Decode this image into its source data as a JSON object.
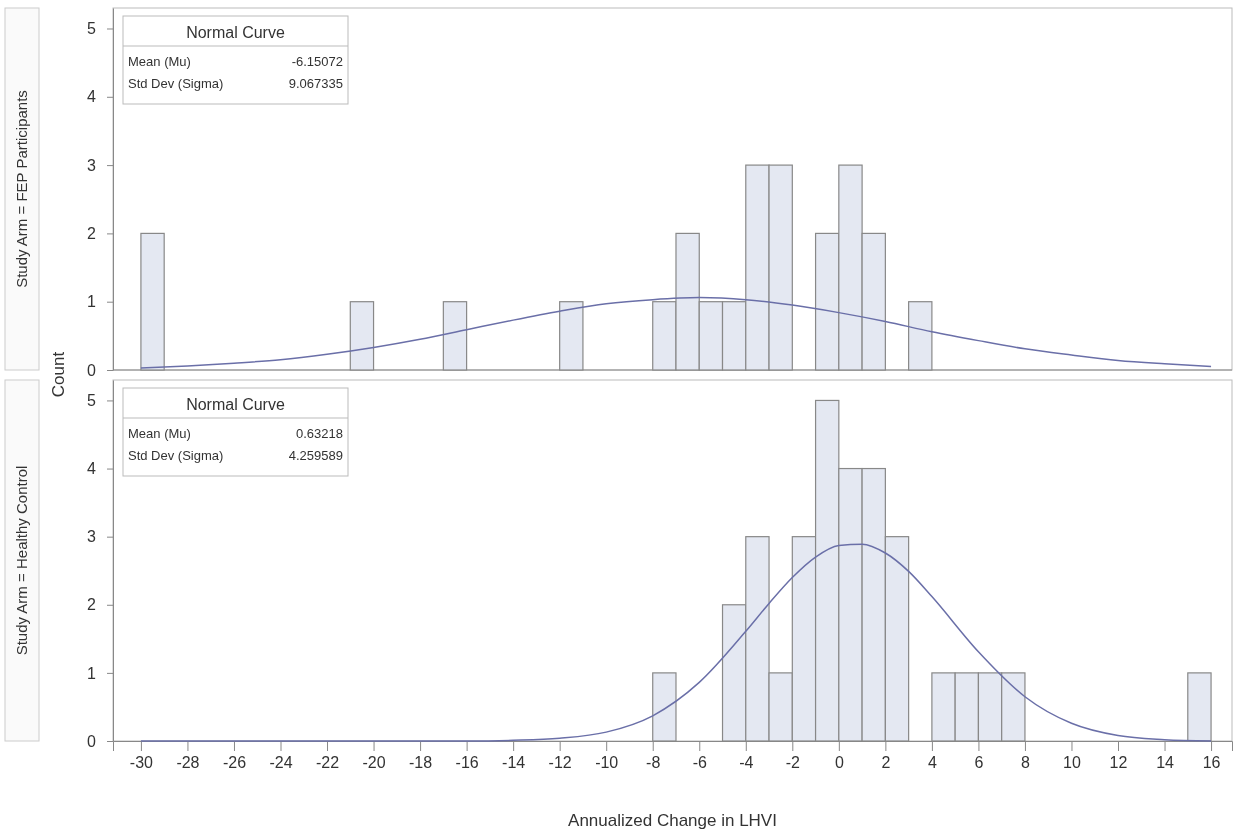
{
  "chart_data": [
    {
      "type": "histogram",
      "title": "Study Arm = FEP Participants",
      "ylabel": "Count",
      "bins": [
        -30,
        -29,
        -28,
        -27,
        -26,
        -25,
        -24,
        -23,
        -22,
        -21,
        -20,
        -19,
        -18,
        -17,
        -16,
        -15,
        -14,
        -13,
        -12,
        -11,
        -10,
        -9,
        -8,
        -7,
        -6,
        -5,
        -4,
        -3,
        -2,
        -1,
        0,
        1,
        2,
        3,
        4,
        5,
        6,
        7,
        8,
        9,
        10,
        11,
        12,
        13,
        14,
        15,
        16
      ],
      "xlim": [
        -31.2,
        16.9
      ],
      "ylim": [
        0,
        5.3
      ],
      "yticks": [
        0,
        1,
        2,
        3,
        4,
        5
      ],
      "tick_labels": "y",
      "annotations": [
        "Normal Curve",
        "Mean (Mu)",
        "-6.15072",
        "Std Dev (Sigma)",
        "9.067335"
      ],
      "series": [
        {
          "color": "#e4e8f2",
          "values": [
            2,
            0,
            0,
            0,
            0,
            0,
            0,
            0,
            0,
            1,
            0,
            0,
            0,
            1,
            0,
            0,
            0,
            0,
            1,
            0,
            0,
            0,
            1,
            2,
            1,
            1,
            3,
            3,
            0,
            2,
            3,
            2,
            0,
            1,
            0,
            0,
            0,
            0,
            0,
            0,
            0,
            0,
            0,
            0,
            0,
            0
          ]
        },
        {
          "type": "line",
          "color": "#6a6fa8",
          "x": [
            -30,
            -28,
            -26,
            -24,
            -22,
            -20,
            -18,
            -16,
            -14,
            -12,
            -10,
            -8,
            -6,
            -4,
            -2,
            0,
            2,
            4,
            6,
            8,
            10,
            12,
            14,
            16
          ],
          "values": [
            0.03,
            0.06,
            0.1,
            0.15,
            0.23,
            0.33,
            0.45,
            0.59,
            0.73,
            0.86,
            0.97,
            1.03,
            1.06,
            1.03,
            0.95,
            0.84,
            0.71,
            0.56,
            0.43,
            0.31,
            0.22,
            0.14,
            0.09,
            0.05
          ]
        }
      ]
    },
    {
      "type": "histogram",
      "title": "Study Arm = Healthy Control",
      "xlabel": "Annualized Change in LHVI",
      "bins": [
        -30,
        -29,
        -28,
        -27,
        -26,
        -25,
        -24,
        -23,
        -22,
        -21,
        -20,
        -19,
        -18,
        -17,
        -16,
        -15,
        -14,
        -13,
        -12,
        -11,
        -10,
        -9,
        -8,
        -7,
        -6,
        -5,
        -4,
        -3,
        -2,
        -1,
        0,
        1,
        2,
        3,
        4,
        5,
        6,
        7,
        8,
        9,
        10,
        11,
        12,
        13,
        14,
        15,
        16
      ],
      "xlim": [
        -31.2,
        16.9
      ],
      "ylim": [
        0,
        5.3
      ],
      "yticks": [
        0,
        1,
        2,
        3,
        4,
        5
      ],
      "xticks": [
        -30,
        -28,
        -26,
        -24,
        -22,
        -20,
        -18,
        -16,
        -14,
        -12,
        -10,
        -8,
        -6,
        -4,
        -2,
        0,
        2,
        4,
        6,
        8,
        10,
        12,
        14,
        16
      ],
      "annotations": [
        "Normal Curve",
        "Mean (Mu)",
        "0.63218",
        "Std Dev (Sigma)",
        "4.259589"
      ],
      "series": [
        {
          "color": "#e4e8f2",
          "values": [
            0,
            0,
            0,
            0,
            0,
            0,
            0,
            0,
            0,
            0,
            0,
            0,
            0,
            0,
            0,
            0,
            0,
            0,
            0,
            0,
            0,
            0,
            1,
            0,
            0,
            2,
            3,
            1,
            3,
            5,
            4,
            4,
            3,
            0,
            1,
            1,
            1,
            1,
            0,
            0,
            0,
            0,
            0,
            0,
            0,
            1
          ]
        },
        {
          "type": "line",
          "color": "#6a6fa8",
          "x": [
            -30,
            -25,
            -20,
            -16,
            -14,
            -12,
            -10,
            -8,
            -6,
            -4,
            -3,
            -2,
            -1,
            0,
            1,
            2,
            3,
            4,
            6,
            8,
            10,
            12,
            14,
            16
          ],
          "values": [
            0,
            0,
            0,
            0,
            0.01,
            0.04,
            0.13,
            0.37,
            0.86,
            1.61,
            2.02,
            2.4,
            2.7,
            2.87,
            2.89,
            2.76,
            2.49,
            2.12,
            1.31,
            0.65,
            0.26,
            0.08,
            0.02,
            0
          ]
        }
      ]
    }
  ]
}
